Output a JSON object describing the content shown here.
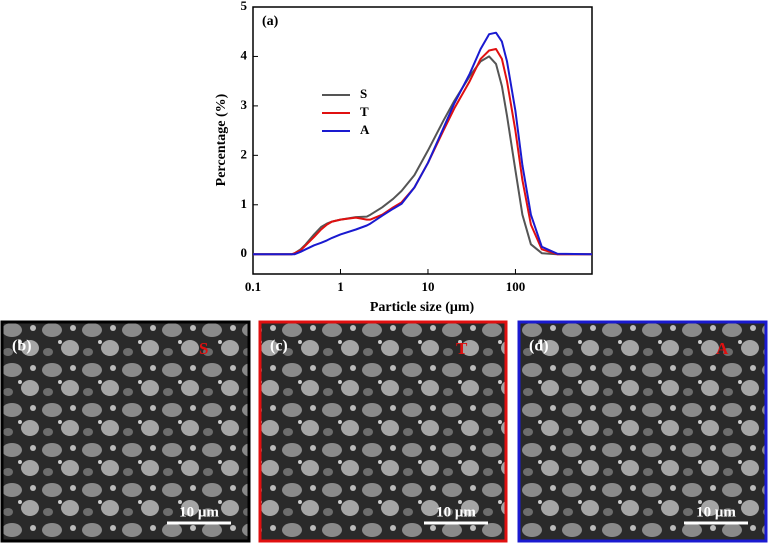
{
  "chart_data": {
    "type": "line",
    "panel_label": "(a)",
    "x_label": "Particle size (μm)",
    "y_label": "Percentage (%)",
    "xscale": "log",
    "xlim": [
      0.1,
      750
    ],
    "xticks": [
      0.1,
      1,
      10,
      100
    ],
    "ylim": [
      -0.4,
      5
    ],
    "yticks": [
      0,
      1,
      2,
      3,
      4,
      5
    ],
    "x": [
      0.1,
      0.28,
      0.3,
      0.35,
      0.4,
      0.5,
      0.6,
      0.7,
      0.8,
      1,
      1.5,
      2,
      2.2,
      3,
      4,
      5,
      7,
      10,
      15,
      20,
      30,
      40,
      50,
      60,
      70,
      80,
      100,
      120,
      150,
      200,
      300,
      750
    ],
    "series": [
      {
        "name": "S",
        "color": "#555555",
        "values": [
          0,
          0,
          0.02,
          0.1,
          0.2,
          0.4,
          0.55,
          0.62,
          0.66,
          0.7,
          0.75,
          0.76,
          0.8,
          0.95,
          1.12,
          1.28,
          1.6,
          2.1,
          2.7,
          3.1,
          3.6,
          3.9,
          4.0,
          3.85,
          3.4,
          2.8,
          1.7,
          0.8,
          0.2,
          0.02,
          0,
          0
        ]
      },
      {
        "name": "T",
        "color": "#e01010",
        "values": [
          0,
          0,
          0.02,
          0.08,
          0.18,
          0.35,
          0.5,
          0.6,
          0.66,
          0.7,
          0.74,
          0.7,
          0.7,
          0.8,
          0.95,
          1.05,
          1.35,
          1.85,
          2.5,
          2.95,
          3.5,
          3.95,
          4.12,
          4.15,
          3.95,
          3.5,
          2.5,
          1.5,
          0.6,
          0.1,
          0,
          0
        ]
      },
      {
        "name": "A",
        "color": "#1a1ad0",
        "values": [
          0,
          0,
          0,
          0.05,
          0.1,
          0.18,
          0.23,
          0.28,
          0.33,
          0.4,
          0.5,
          0.58,
          0.62,
          0.78,
          0.92,
          1.02,
          1.35,
          1.85,
          2.55,
          3.05,
          3.65,
          4.15,
          4.45,
          4.48,
          4.3,
          3.9,
          2.9,
          1.8,
          0.8,
          0.15,
          0.01,
          0
        ]
      }
    ]
  },
  "panels": [
    {
      "label": "(b)",
      "sample": "S",
      "color": "#000000",
      "scale_bar": "10 μm"
    },
    {
      "label": "(c)",
      "sample": "T",
      "color": "#e01010",
      "scale_bar": "10 μm"
    },
    {
      "label": "(d)",
      "sample": "A",
      "color": "#1a1ad0",
      "scale_bar": "10 μm"
    }
  ]
}
